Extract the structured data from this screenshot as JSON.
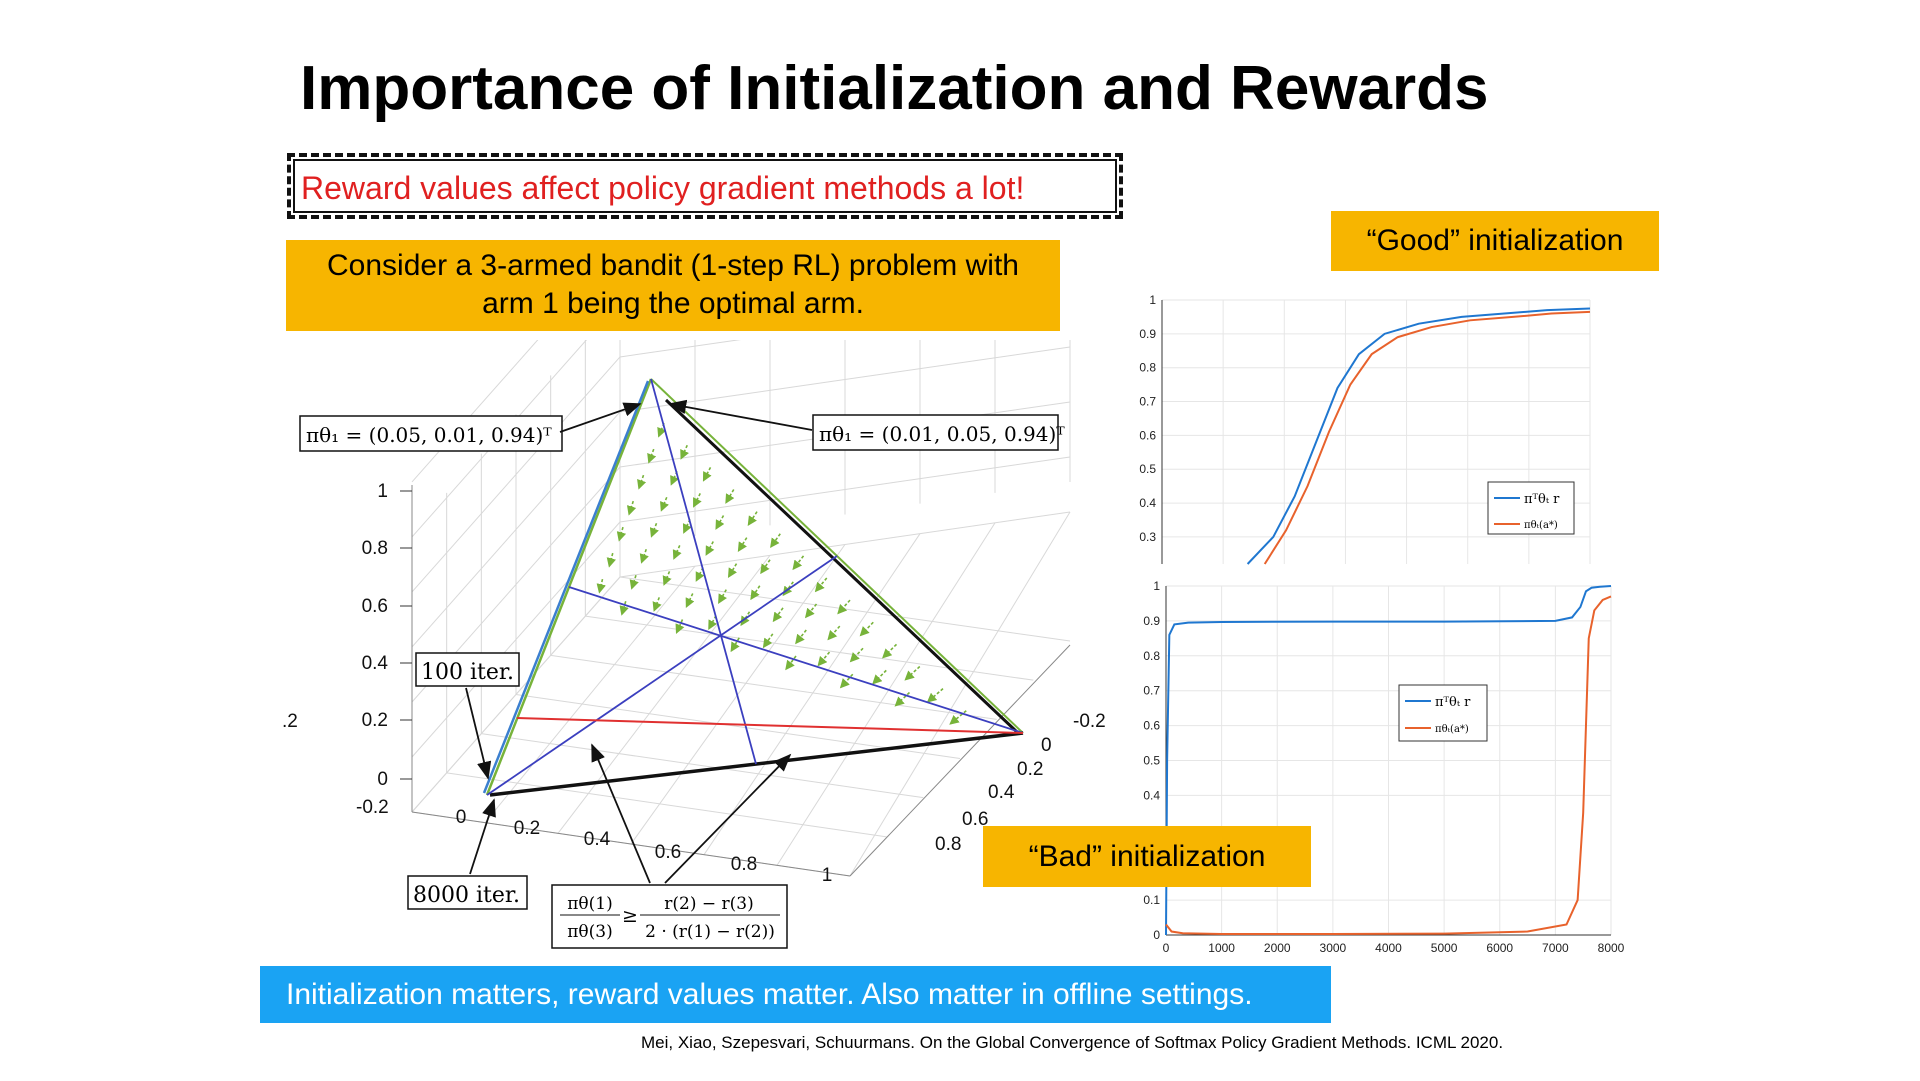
{
  "slide": {
    "title": "Importance of Initialization and Rewards",
    "reward_note": "Reward values affect policy gradient methods a lot!",
    "consider_line1": "Consider a 3-armed bandit (1-step RL) problem with",
    "consider_line2": "arm 1 being the optimal arm.",
    "good_label": "“Good” initialization",
    "bad_label": "“Bad” initialization",
    "conclusion": "Initialization matters, reward values matter. Also matter in offline settings.",
    "citation": "Mei, Xiao, Szepesvari, Schuurmans. On the Global Convergence of Softmax Policy Gradient Methods. ICML 2020."
  },
  "simplex_plot": {
    "vertical_ticks": [
      "1",
      "0.8",
      "0.6",
      "0.4",
      "0.2",
      "0",
      "-0.2"
    ],
    "front_ticks": [
      "0",
      "0.2",
      "0.4",
      "0.6",
      "0.8",
      "1"
    ],
    "right_ticks": [
      "-0.2",
      "0",
      "0.2",
      "0.4",
      "0.6",
      "0.8"
    ],
    "cropped_tick": ".2",
    "annotations": {
      "init_left": "πθ₁ = (0.05, 0.01, 0.94)ᵀ",
      "init_right": "πθ₁ = (0.01, 0.05, 0.94)ᵀ",
      "iter_100": "100 iter.",
      "iter_8000": "8000 iter.",
      "cond_lhs_num": "πθ(1)",
      "cond_lhs_den": "πθ(3)",
      "cond_op": "≥",
      "cond_rhs_num": "r(2) − r(3)",
      "cond_rhs_den": "2 · (r(1) − r(2))"
    },
    "colors": {
      "arrows": "#77b33a",
      "blue": "#3b3fbf",
      "red": "#e03030",
      "black": "#000000"
    }
  },
  "chart_data": [
    {
      "type": "line",
      "name": "good-initialization",
      "yticks": [
        "1",
        "0.9",
        "0.8",
        "0.7",
        "0.6",
        "0.5",
        "0.4",
        "0.3"
      ],
      "ylim": [
        0.22,
        1.0
      ],
      "xlim": [
        0,
        1
      ],
      "legend": [
        "πᵀθₜ r",
        "πθₜ(a*)"
      ],
      "legend_position": "lower-right",
      "grid": true,
      "series": [
        {
          "color": "#1f77d0",
          "x": [
            0.2,
            0.26,
            0.31,
            0.36,
            0.41,
            0.46,
            0.52,
            0.6,
            0.7,
            0.8,
            0.9,
            1.0
          ],
          "y": [
            0.22,
            0.3,
            0.42,
            0.58,
            0.74,
            0.84,
            0.9,
            0.93,
            0.95,
            0.96,
            0.97,
            0.975
          ]
        },
        {
          "color": "#e8622c",
          "x": [
            0.24,
            0.29,
            0.34,
            0.39,
            0.44,
            0.49,
            0.55,
            0.63,
            0.72,
            0.82,
            0.91,
            1.0
          ],
          "y": [
            0.22,
            0.32,
            0.45,
            0.61,
            0.75,
            0.84,
            0.89,
            0.92,
            0.94,
            0.95,
            0.96,
            0.965
          ]
        }
      ]
    },
    {
      "type": "line",
      "name": "bad-initialization",
      "xticks": [
        "0",
        "1000",
        "2000",
        "3000",
        "4000",
        "5000",
        "6000",
        "7000",
        "8000"
      ],
      "yticks": [
        "1",
        "0.9",
        "0.8",
        "0.7",
        "0.6",
        "0.5",
        "0.4",
        "0.1",
        "0"
      ],
      "xlim": [
        0,
        8000
      ],
      "ylim": [
        0,
        1
      ],
      "legend": [
        "πᵀθₜ r",
        "πθₜ(a*)"
      ],
      "legend_position": "center-right",
      "grid": true,
      "series": [
        {
          "color": "#1f77d0",
          "x": [
            0,
            20,
            60,
            150,
            400,
            1000,
            3000,
            5000,
            7000,
            7300,
            7450,
            7550,
            7650,
            7800,
            8000
          ],
          "y": [
            0.0,
            0.5,
            0.86,
            0.89,
            0.895,
            0.897,
            0.898,
            0.898,
            0.9,
            0.91,
            0.94,
            0.985,
            0.995,
            0.998,
            1.0
          ]
        },
        {
          "color": "#e8622c",
          "x": [
            0,
            100,
            300,
            1000,
            3000,
            5000,
            6500,
            7200,
            7400,
            7500,
            7550,
            7600,
            7700,
            7850,
            8000
          ],
          "y": [
            0.03,
            0.01,
            0.005,
            0.003,
            0.003,
            0.004,
            0.01,
            0.03,
            0.1,
            0.35,
            0.6,
            0.85,
            0.93,
            0.96,
            0.97
          ]
        }
      ]
    }
  ]
}
